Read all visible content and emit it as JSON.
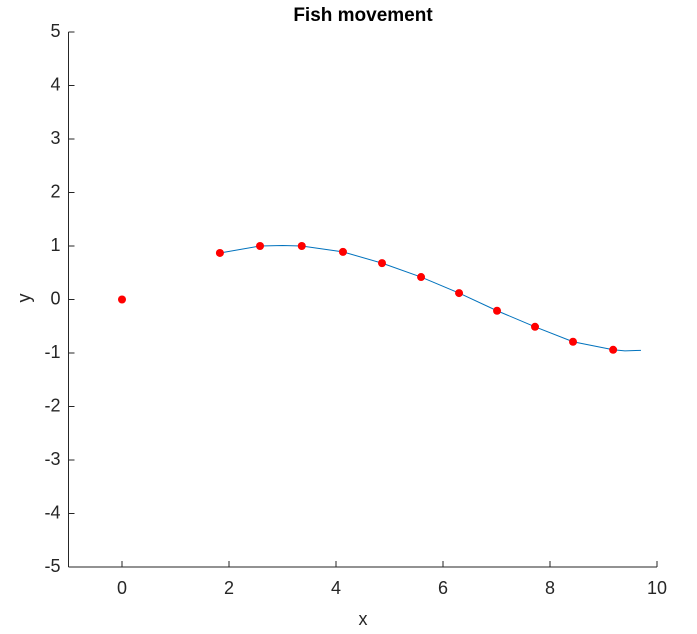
{
  "chart_data": {
    "type": "line",
    "title": "Fish movement",
    "x_label": "x",
    "y_label": "y",
    "xlim": [
      -1,
      10
    ],
    "xticks": [
      0,
      2,
      4,
      6,
      8,
      10
    ],
    "ylim": [
      -5,
      5
    ],
    "yticks": [
      -5,
      -4,
      -3,
      -2,
      -1,
      0,
      1,
      2,
      3,
      4,
      5
    ],
    "series": [
      {
        "type": "line",
        "color": "#0072bd",
        "x": [
          1.83,
          2.58,
          3.0,
          3.36,
          4.13,
          4.86,
          5.59,
          6.3,
          7.01,
          7.72,
          8.43,
          9.18,
          9.4,
          9.7
        ],
        "values": [
          0.87,
          1.0,
          1.01,
          1.0,
          0.89,
          0.68,
          0.42,
          0.12,
          -0.21,
          -0.51,
          -0.79,
          -0.94,
          -0.96,
          -0.95
        ]
      },
      {
        "type": "scatter",
        "color": "#ff0000",
        "x": [
          0,
          1.83,
          2.58,
          3.36,
          4.13,
          4.86,
          5.59,
          6.3,
          7.01,
          7.72,
          8.43,
          9.18
        ],
        "values": [
          0,
          0.87,
          1.0,
          1.0,
          0.89,
          0.68,
          0.42,
          0.12,
          -0.21,
          -0.51,
          -0.79,
          -0.94
        ]
      }
    ]
  }
}
